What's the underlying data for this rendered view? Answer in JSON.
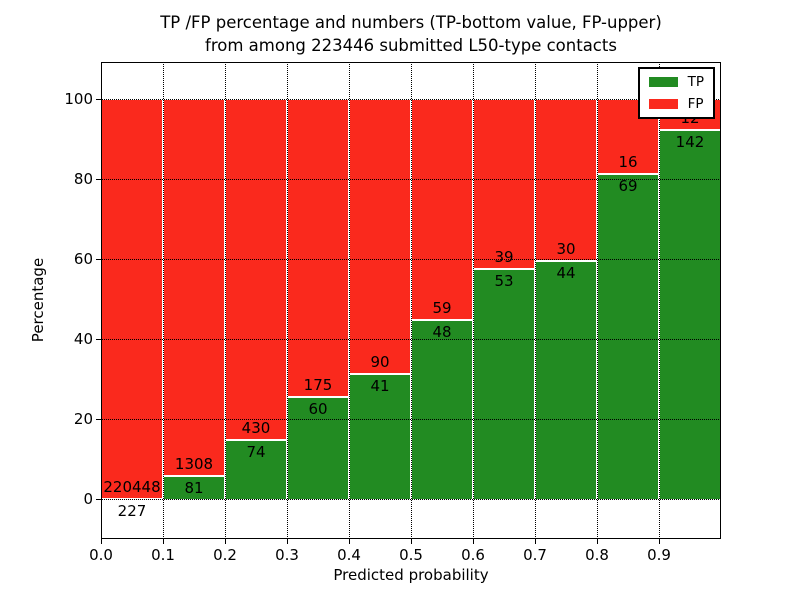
{
  "chart_data": {
    "type": "bar",
    "stacked": true,
    "title_line1": "TP /FP percentage and numbers (TP-bottom value, FP-upper)",
    "title_line2": "from among 223446 submitted L50-type contacts",
    "xlabel": "Predicted probability",
    "ylabel": "Percentage",
    "x_ticks": [
      "0.0",
      "0.1",
      "0.2",
      "0.3",
      "0.4",
      "0.5",
      "0.6",
      "0.7",
      "0.8",
      "0.9"
    ],
    "y_ticks": [
      0,
      20,
      40,
      60,
      80,
      100
    ],
    "ylim": [
      -10,
      109.25
    ],
    "xlim": [
      0.0,
      1.0
    ],
    "grid": "dotted both axes",
    "legend_position": "upper right",
    "colors": {
      "tp": "#228b22",
      "fp": "#fa291d",
      "bar_edge": "#ffffff"
    },
    "legend": [
      {
        "label": "TP",
        "color": "#228b22"
      },
      {
        "label": "FP",
        "color": "#fa291d"
      }
    ],
    "bins": [
      {
        "range": "0.0-0.1",
        "tp": 227,
        "fp": 220448,
        "tp_pct": 0.1
      },
      {
        "range": "0.1-0.2",
        "tp": 81,
        "fp": 1308,
        "tp_pct": 5.83
      },
      {
        "range": "0.2-0.3",
        "tp": 74,
        "fp": 430,
        "tp_pct": 14.68
      },
      {
        "range": "0.3-0.4",
        "tp": 60,
        "fp": 175,
        "tp_pct": 25.53
      },
      {
        "range": "0.4-0.5",
        "tp": 41,
        "fp": 90,
        "tp_pct": 31.3
      },
      {
        "range": "0.5-0.6",
        "tp": 48,
        "fp": 59,
        "tp_pct": 44.86
      },
      {
        "range": "0.6-0.7",
        "tp": 53,
        "fp": 39,
        "tp_pct": 57.61
      },
      {
        "range": "0.7-0.8",
        "tp": 44,
        "fp": 30,
        "tp_pct": 59.46
      },
      {
        "range": "0.8-0.9",
        "tp": 69,
        "fp": 16,
        "tp_pct": 81.18
      },
      {
        "range": "0.9-1.0",
        "tp": 142,
        "fp": 12,
        "tp_pct": 92.21
      }
    ]
  }
}
